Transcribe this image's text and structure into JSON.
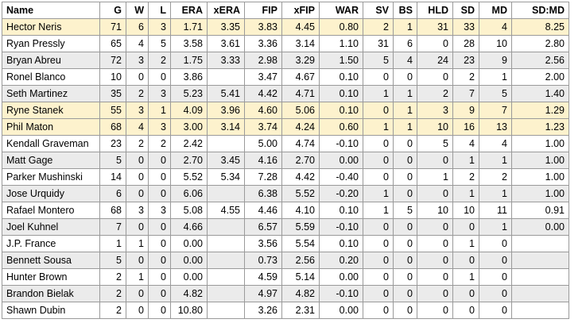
{
  "columns": [
    "Name",
    "G",
    "W",
    "L",
    "ERA",
    "xERA",
    "FIP",
    "xFIP",
    "WAR",
    "SV",
    "BS",
    "HLD",
    "SD",
    "MD",
    "SD:MD"
  ],
  "colors": {
    "highlight_row": "#fdf2cd",
    "alt_row": "#ebebeb",
    "border": "#9a9a9a"
  },
  "rows": [
    {
      "style": "hl",
      "cells": [
        "Hector Neris",
        "71",
        "6",
        "3",
        "1.71",
        "3.35",
        "3.83",
        "4.45",
        "0.80",
        "2",
        "1",
        "31",
        "33",
        "4",
        "8.25"
      ]
    },
    {
      "style": "plain",
      "cells": [
        "Ryan Pressly",
        "65",
        "4",
        "5",
        "3.58",
        "3.61",
        "3.36",
        "3.14",
        "1.10",
        "31",
        "6",
        "0",
        "28",
        "10",
        "2.80"
      ]
    },
    {
      "style": "alt",
      "cells": [
        "Bryan Abreu",
        "72",
        "3",
        "2",
        "1.75",
        "3.33",
        "2.98",
        "3.29",
        "1.50",
        "5",
        "4",
        "24",
        "23",
        "9",
        "2.56"
      ]
    },
    {
      "style": "plain",
      "cells": [
        "Ronel Blanco",
        "10",
        "0",
        "0",
        "3.86",
        "",
        "3.47",
        "4.67",
        "0.10",
        "0",
        "0",
        "0",
        "2",
        "1",
        "2.00"
      ]
    },
    {
      "style": "alt",
      "cells": [
        "Seth Martinez",
        "35",
        "2",
        "3",
        "5.23",
        "5.41",
        "4.42",
        "4.71",
        "0.10",
        "1",
        "1",
        "2",
        "7",
        "5",
        "1.40"
      ]
    },
    {
      "style": "hl",
      "cells": [
        "Ryne Stanek",
        "55",
        "3",
        "1",
        "4.09",
        "3.96",
        "4.60",
        "5.06",
        "0.10",
        "0",
        "1",
        "3",
        "9",
        "7",
        "1.29"
      ]
    },
    {
      "style": "hl",
      "cells": [
        "Phil Maton",
        "68",
        "4",
        "3",
        "3.00",
        "3.14",
        "3.74",
        "4.24",
        "0.60",
        "1",
        "1",
        "10",
        "16",
        "13",
        "1.23"
      ]
    },
    {
      "style": "plain",
      "cells": [
        "Kendall Graveman",
        "23",
        "2",
        "2",
        "2.42",
        "",
        "5.00",
        "4.74",
        "-0.10",
        "0",
        "0",
        "5",
        "4",
        "4",
        "1.00"
      ]
    },
    {
      "style": "alt",
      "cells": [
        "Matt Gage",
        "5",
        "0",
        "0",
        "2.70",
        "3.45",
        "4.16",
        "2.70",
        "0.00",
        "0",
        "0",
        "0",
        "1",
        "1",
        "1.00"
      ]
    },
    {
      "style": "plain",
      "cells": [
        "Parker Mushinski",
        "14",
        "0",
        "0",
        "5.52",
        "5.34",
        "7.28",
        "4.42",
        "-0.40",
        "0",
        "0",
        "1",
        "2",
        "2",
        "1.00"
      ]
    },
    {
      "style": "alt",
      "cells": [
        "Jose Urquidy",
        "6",
        "0",
        "0",
        "6.06",
        "",
        "6.38",
        "5.52",
        "-0.20",
        "1",
        "0",
        "0",
        "1",
        "1",
        "1.00"
      ]
    },
    {
      "style": "plain",
      "cells": [
        "Rafael Montero",
        "68",
        "3",
        "3",
        "5.08",
        "4.55",
        "4.46",
        "4.10",
        "0.10",
        "1",
        "5",
        "10",
        "10",
        "11",
        "0.91"
      ]
    },
    {
      "style": "alt",
      "cells": [
        "Joel Kuhnel",
        "7",
        "0",
        "0",
        "4.66",
        "",
        "6.57",
        "5.59",
        "-0.10",
        "0",
        "0",
        "0",
        "0",
        "1",
        "0.00"
      ]
    },
    {
      "style": "plain",
      "cells": [
        "J.P. France",
        "1",
        "1",
        "0",
        "0.00",
        "",
        "3.56",
        "5.54",
        "0.10",
        "0",
        "0",
        "0",
        "1",
        "0",
        ""
      ]
    },
    {
      "style": "alt",
      "cells": [
        "Bennett Sousa",
        "5",
        "0",
        "0",
        "0.00",
        "",
        "0.73",
        "2.56",
        "0.20",
        "0",
        "0",
        "0",
        "0",
        "0",
        ""
      ]
    },
    {
      "style": "plain",
      "cells": [
        "Hunter Brown",
        "2",
        "1",
        "0",
        "0.00",
        "",
        "4.59",
        "5.14",
        "0.00",
        "0",
        "0",
        "0",
        "1",
        "0",
        ""
      ]
    },
    {
      "style": "alt",
      "cells": [
        "Brandon Bielak",
        "2",
        "0",
        "0",
        "4.82",
        "",
        "4.97",
        "4.82",
        "-0.10",
        "0",
        "0",
        "0",
        "0",
        "0",
        ""
      ]
    },
    {
      "style": "plain",
      "cells": [
        "Shawn Dubin",
        "2",
        "0",
        "0",
        "10.80",
        "",
        "3.26",
        "2.31",
        "0.00",
        "0",
        "0",
        "0",
        "0",
        "0",
        ""
      ]
    }
  ]
}
